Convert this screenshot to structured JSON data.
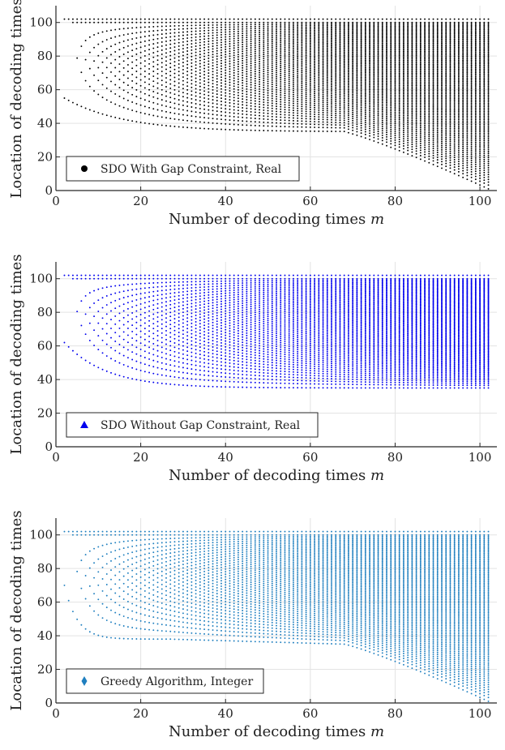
{
  "chart_data": [
    {
      "type": "scatter",
      "title": "",
      "xlabel": "Number of decoding times",
      "xlabel_var": "m",
      "ylabel": "Location of decoding times",
      "xlim": [
        0,
        104
      ],
      "ylim": [
        0,
        110
      ],
      "xticks": [
        0,
        20,
        40,
        60,
        80,
        100
      ],
      "yticks": [
        0,
        20,
        40,
        60,
        80,
        100
      ],
      "grid": true,
      "legend_position": "bottom-left",
      "series": [
        {
          "name": "SDO With Gap Constraint, Real",
          "color": "#000000",
          "marker": "circle",
          "m_range": [
            2,
            102
          ],
          "max_location": 102,
          "min_location_at_m2": 55,
          "min_location_plateau": 35,
          "min_location_at_m102": 1
        }
      ]
    },
    {
      "type": "scatter",
      "title": "",
      "xlabel": "Number of decoding times",
      "xlabel_var": "m",
      "ylabel": "Location of decoding times",
      "xlim": [
        0,
        104
      ],
      "ylim": [
        0,
        110
      ],
      "xticks": [
        0,
        20,
        40,
        60,
        80,
        100
      ],
      "yticks": [
        0,
        20,
        40,
        60,
        80,
        100
      ],
      "grid": true,
      "legend_position": "bottom-left",
      "series": [
        {
          "name": "SDO Without Gap Constraint, Real",
          "color": "#0000ee",
          "marker": "triangle",
          "m_range": [
            2,
            102
          ],
          "max_location": 102,
          "min_location_at_m2": 62,
          "min_location_plateau": 35,
          "min_location_at_m102": 35
        }
      ]
    },
    {
      "type": "scatter",
      "title": "",
      "xlabel": "Number of decoding times",
      "xlabel_var": "m",
      "ylabel": "Location of decoding times",
      "xlim": [
        0,
        104
      ],
      "ylim": [
        0,
        110
      ],
      "xticks": [
        0,
        20,
        40,
        60,
        80,
        100
      ],
      "yticks": [
        0,
        20,
        40,
        60,
        80,
        100
      ],
      "grid": true,
      "legend_position": "bottom-left",
      "series": [
        {
          "name": "Greedy Algorithm, Integer",
          "color": "#1f7fbf",
          "marker": "diamond",
          "m_range": [
            2,
            102
          ],
          "max_location": 102,
          "min_location_at_m2": 70,
          "min_location_plateau": 35,
          "min_location_at_m102": 1
        }
      ]
    }
  ]
}
